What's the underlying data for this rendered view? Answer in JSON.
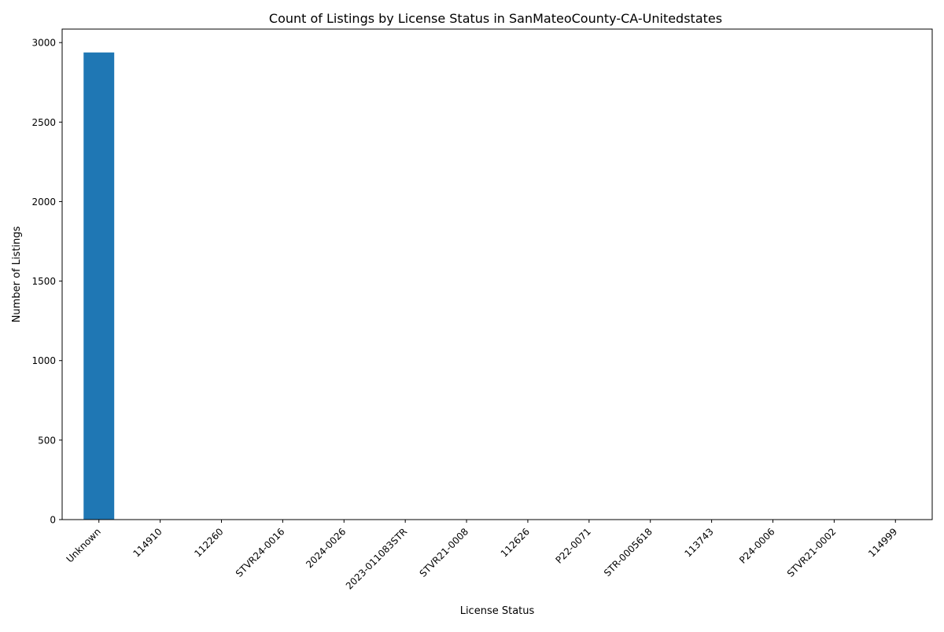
{
  "chart_data": {
    "type": "bar",
    "title": "Count of Listings by License Status in SanMateoCounty-CA-Unitedstates",
    "xlabel": "License Status",
    "ylabel": "Number of Listings",
    "categories": [
      "Unknown",
      "114910",
      "112260",
      "STVR24-0016",
      "2024-0026",
      "2023-011083STR",
      "STVR21-0008",
      "112626",
      "P22-0071",
      "STR-0005618",
      "113743",
      "P24-0006",
      "STVR21-0002",
      "114999"
    ],
    "values": [
      2938,
      1,
      1,
      1,
      1,
      1,
      1,
      1,
      1,
      1,
      1,
      1,
      1,
      1
    ],
    "ylim": [
      0,
      3085
    ],
    "yticks": [
      0,
      500,
      1000,
      1500,
      2000,
      2500,
      3000
    ],
    "grid": false,
    "colors": {
      "bar": "#1f77b4",
      "axis": "#000000"
    }
  }
}
